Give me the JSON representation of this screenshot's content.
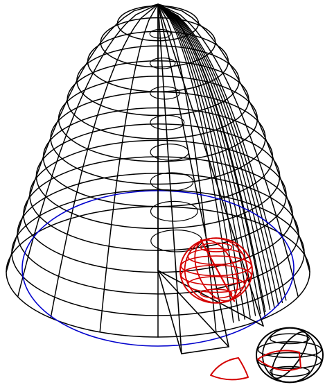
{
  "colors": {
    "background": "#ffffff",
    "wireframe": "#000000",
    "highlight": "#d40000",
    "base_ring": "#0000cc"
  }
}
